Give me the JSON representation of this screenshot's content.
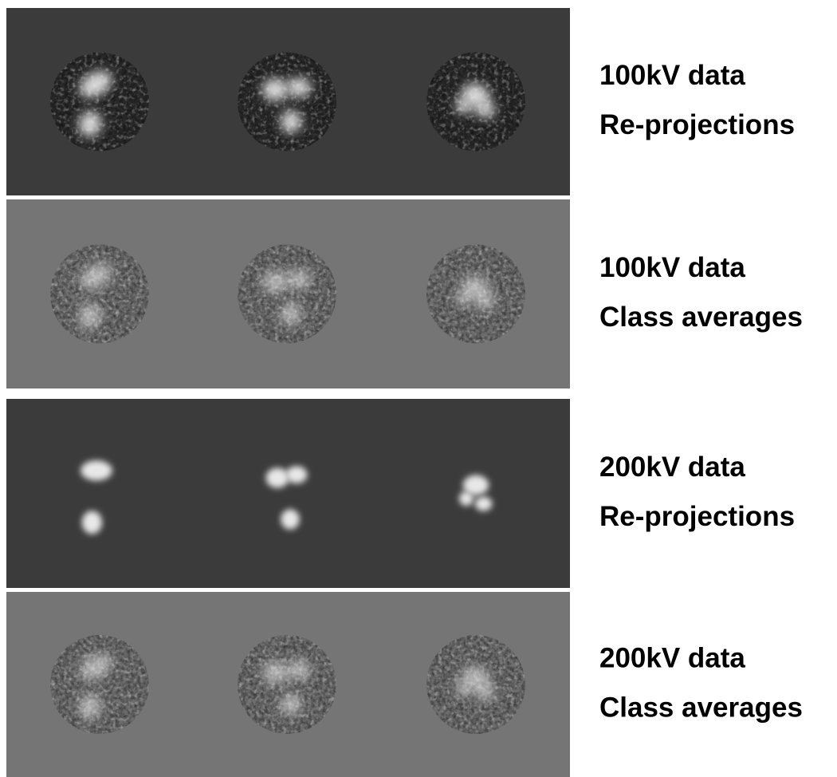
{
  "panels": [
    {
      "label": [
        "100kV data",
        "Re-projections"
      ]
    },
    {
      "label": [
        "100kV data",
        "Class averages"
      ]
    },
    {
      "label": [
        "200kV data",
        "Re-projections"
      ]
    },
    {
      "label": [
        "200kV data",
        "Class averages"
      ]
    }
  ]
}
